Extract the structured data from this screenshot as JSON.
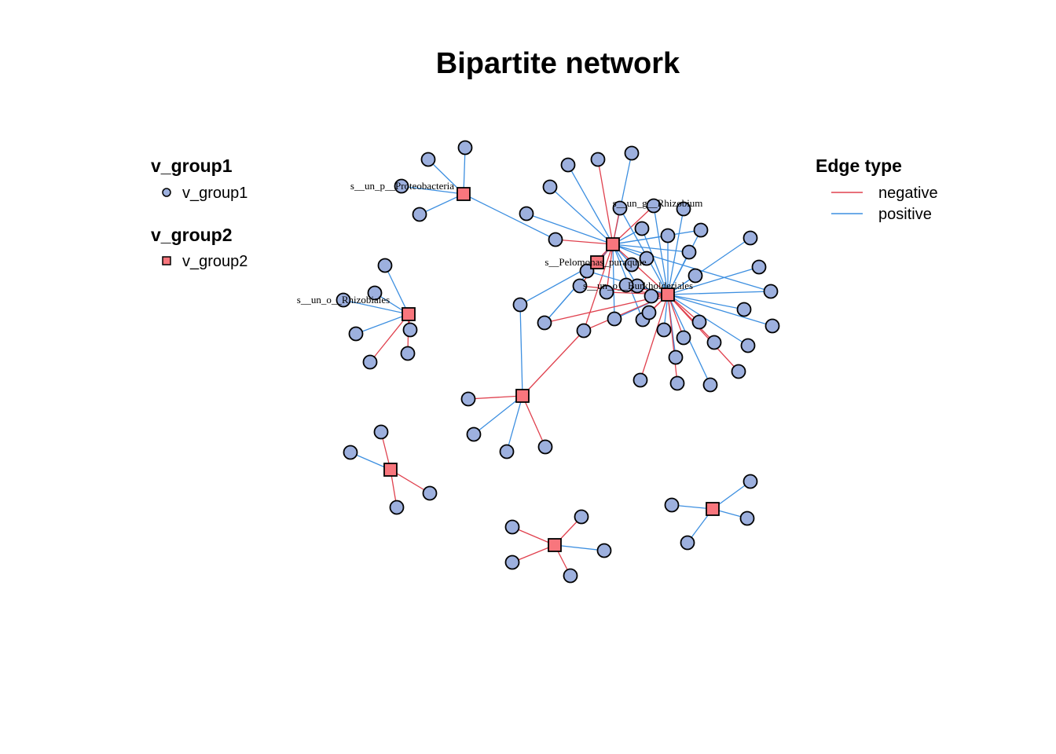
{
  "title": "Bipartite network",
  "colors": {
    "v_group1_fill": "#9DB0DE",
    "v_group2_fill": "#F8767D",
    "node_stroke": "#000000",
    "negative": "#E0414E",
    "positive": "#3D8FE0"
  },
  "legend": {
    "group1": {
      "title": "v_group1",
      "item_label": "v_group1",
      "shape": "circle"
    },
    "group2": {
      "title": "v_group2",
      "item_label": "v_group2",
      "shape": "square"
    },
    "edge_type": {
      "title": "Edge type",
      "negative_label": "negative",
      "positive_label": "positive"
    }
  },
  "hub_labels": {
    "h_proteo": "s__un_p__Proteobacteria",
    "h_rhizobium": "s__un_g__Rhizobium",
    "h_pelomonas": "s__Pelomonas_puraquae",
    "h_burk": "s__un_o__Burkholderiales",
    "h_rhizobiales": "s__un_o__Rhizobiales"
  },
  "hubs": [
    "h_proteo",
    "h_rhizobium",
    "h_pelomonas",
    "h_burk",
    "h_rhizobiales",
    "h_mid",
    "h_c1",
    "h_c2",
    "h_c3"
  ],
  "leaves": [
    "n1",
    "n2",
    "n3",
    "n4",
    "n5",
    "n6",
    "n7",
    "n8",
    "n9",
    "n10",
    "n11",
    "n12",
    "n13",
    "n14",
    "n15",
    "n16",
    "n17",
    "n18",
    "n19",
    "n20",
    "n21",
    "n22",
    "n23",
    "n24",
    "n25",
    "n26",
    "n27",
    "n28",
    "n29",
    "n30",
    "n31",
    "n32",
    "n33",
    "n34",
    "n35",
    "n36",
    "n37",
    "n38",
    "n39",
    "n40",
    "n41",
    "n42",
    "n43",
    "n44",
    "n45",
    "n46",
    "n47",
    "n48",
    "n49",
    "n50",
    "n51",
    "n52",
    "n53",
    "n54",
    "n55",
    "n56",
    "n57",
    "n58",
    "n59",
    "n60",
    "n61",
    "n62",
    "n63",
    "n64",
    "n65",
    "n66",
    "n67"
  ],
  "edges": [
    {
      "from": "h_proteo",
      "to": "n1",
      "type": "positive"
    },
    {
      "from": "h_proteo",
      "to": "n2",
      "type": "positive"
    },
    {
      "from": "h_proteo",
      "to": "n3",
      "type": "positive"
    },
    {
      "from": "h_proteo",
      "to": "n4",
      "type": "positive"
    },
    {
      "from": "h_proteo",
      "to": "n12",
      "type": "positive"
    },
    {
      "from": "h_rhizobium",
      "to": "n5",
      "type": "positive"
    },
    {
      "from": "h_rhizobium",
      "to": "n6",
      "type": "negative"
    },
    {
      "from": "h_rhizobium",
      "to": "n7",
      "type": "positive"
    },
    {
      "from": "h_rhizobium",
      "to": "n8",
      "type": "positive"
    },
    {
      "from": "h_rhizobium",
      "to": "n9",
      "type": "negative"
    },
    {
      "from": "h_rhizobium",
      "to": "n10",
      "type": "negative"
    },
    {
      "from": "h_rhizobium",
      "to": "n11",
      "type": "positive"
    },
    {
      "from": "h_rhizobium",
      "to": "n12",
      "type": "negative"
    },
    {
      "from": "h_rhizobium",
      "to": "n14",
      "type": "positive"
    },
    {
      "from": "h_rhizobium",
      "to": "n15",
      "type": "positive"
    },
    {
      "from": "h_rhizobium",
      "to": "n16",
      "type": "positive"
    },
    {
      "from": "h_rhizobium",
      "to": "n17",
      "type": "positive"
    },
    {
      "from": "h_rhizobium",
      "to": "n18",
      "type": "positive"
    },
    {
      "from": "h_rhizobium",
      "to": "n21",
      "type": "negative"
    },
    {
      "from": "h_rhizobium",
      "to": "n22",
      "type": "negative"
    },
    {
      "from": "h_rhizobium",
      "to": "n23",
      "type": "positive"
    },
    {
      "from": "h_rhizobium",
      "to": "n24",
      "type": "positive"
    },
    {
      "from": "h_rhizobium",
      "to": "n27",
      "type": "positive"
    },
    {
      "from": "h_rhizobium",
      "to": "n28",
      "type": "positive"
    },
    {
      "from": "h_rhizobium",
      "to": "n29",
      "type": "positive"
    },
    {
      "from": "h_rhizobium",
      "to": "n30",
      "type": "negative"
    },
    {
      "from": "h_rhizobium",
      "to": "n31",
      "type": "negative"
    },
    {
      "from": "h_rhizobium",
      "to": "n26",
      "type": "positive"
    },
    {
      "from": "h_rhizobium",
      "to": "h_burk",
      "type": "negative"
    },
    {
      "from": "h_burk",
      "to": "n9",
      "type": "positive"
    },
    {
      "from": "h_burk",
      "to": "n10",
      "type": "positive"
    },
    {
      "from": "h_burk",
      "to": "n13",
      "type": "positive"
    },
    {
      "from": "h_burk",
      "to": "n14",
      "type": "positive"
    },
    {
      "from": "h_burk",
      "to": "n15",
      "type": "positive"
    },
    {
      "from": "h_burk",
      "to": "n16",
      "type": "positive"
    },
    {
      "from": "h_burk",
      "to": "n19",
      "type": "positive"
    },
    {
      "from": "h_burk",
      "to": "n20",
      "type": "positive"
    },
    {
      "from": "h_burk",
      "to": "n17",
      "type": "positive"
    },
    {
      "from": "h_burk",
      "to": "n21",
      "type": "negative"
    },
    {
      "from": "h_burk",
      "to": "n22",
      "type": "negative"
    },
    {
      "from": "h_burk",
      "to": "n23",
      "type": "negative"
    },
    {
      "from": "h_burk",
      "to": "n25",
      "type": "positive"
    },
    {
      "from": "h_burk",
      "to": "n27",
      "type": "positive"
    },
    {
      "from": "h_burk",
      "to": "n28",
      "type": "negative"
    },
    {
      "from": "h_burk",
      "to": "n29",
      "type": "positive"
    },
    {
      "from": "h_burk",
      "to": "n30",
      "type": "negative"
    },
    {
      "from": "h_burk",
      "to": "n31",
      "type": "positive"
    },
    {
      "from": "h_burk",
      "to": "n32",
      "type": "positive"
    },
    {
      "from": "h_burk",
      "to": "n33",
      "type": "positive"
    },
    {
      "from": "h_burk",
      "to": "n34",
      "type": "positive"
    },
    {
      "from": "h_burk",
      "to": "n35",
      "type": "negative"
    },
    {
      "from": "h_burk",
      "to": "n36",
      "type": "positive"
    },
    {
      "from": "h_burk",
      "to": "n37",
      "type": "negative"
    },
    {
      "from": "h_burk",
      "to": "n38",
      "type": "positive"
    },
    {
      "from": "h_burk",
      "to": "n39",
      "type": "negative"
    },
    {
      "from": "h_burk",
      "to": "n40",
      "type": "negative"
    },
    {
      "from": "h_burk",
      "to": "n41",
      "type": "negative"
    },
    {
      "from": "h_burk",
      "to": "n42",
      "type": "negative"
    },
    {
      "from": "h_burk",
      "to": "n43",
      "type": "negative"
    },
    {
      "from": "h_burk",
      "to": "n44",
      "type": "negative"
    },
    {
      "from": "h_burk",
      "to": "n45",
      "type": "negative"
    },
    {
      "from": "h_burk",
      "to": "n46",
      "type": "positive"
    },
    {
      "from": "h_burk",
      "to": "n24",
      "type": "positive"
    },
    {
      "from": "h_pelomonas",
      "to": "n47",
      "type": "positive"
    },
    {
      "from": "h_pelomonas",
      "to": "n23",
      "type": "positive"
    },
    {
      "from": "h_rhizobiales",
      "to": "n48",
      "type": "positive"
    },
    {
      "from": "h_rhizobiales",
      "to": "n49",
      "type": "positive"
    },
    {
      "from": "h_rhizobiales",
      "to": "n50",
      "type": "positive"
    },
    {
      "from": "h_rhizobiales",
      "to": "n51",
      "type": "positive"
    },
    {
      "from": "h_rhizobiales",
      "to": "n52",
      "type": "negative"
    },
    {
      "from": "h_rhizobiales",
      "to": "n53",
      "type": "negative"
    },
    {
      "from": "h_rhizobiales",
      "to": "n54",
      "type": "negative"
    },
    {
      "from": "h_mid",
      "to": "n47",
      "type": "positive"
    },
    {
      "from": "h_mid",
      "to": "n30",
      "type": "negative"
    },
    {
      "from": "h_mid",
      "to": "n55",
      "type": "negative"
    },
    {
      "from": "h_mid",
      "to": "n56",
      "type": "positive"
    },
    {
      "from": "h_mid",
      "to": "n57",
      "type": "positive"
    },
    {
      "from": "h_mid",
      "to": "n58",
      "type": "negative"
    },
    {
      "from": "h_c1",
      "to": "n59",
      "type": "negative"
    },
    {
      "from": "h_c1",
      "to": "n60",
      "type": "positive"
    },
    {
      "from": "h_c1",
      "to": "n61",
      "type": "negative"
    },
    {
      "from": "h_c1",
      "to": "n62",
      "type": "negative"
    },
    {
      "from": "h_c2",
      "to": "n63",
      "type": "negative"
    },
    {
      "from": "h_c2",
      "to": "n64",
      "type": "negative"
    },
    {
      "from": "h_c2",
      "to": "n65",
      "type": "negative"
    },
    {
      "from": "h_c2",
      "to": "n66",
      "type": "positive"
    },
    {
      "from": "h_c2",
      "to": "n67",
      "type": "negative"
    },
    {
      "from": "h_c3",
      "to": "n68",
      "type": "positive"
    },
    {
      "from": "h_c3",
      "to": "n69",
      "type": "positive"
    },
    {
      "from": "h_c3",
      "to": "n70",
      "type": "positive"
    },
    {
      "from": "h_c3",
      "to": "n71",
      "type": "positive"
    }
  ]
}
